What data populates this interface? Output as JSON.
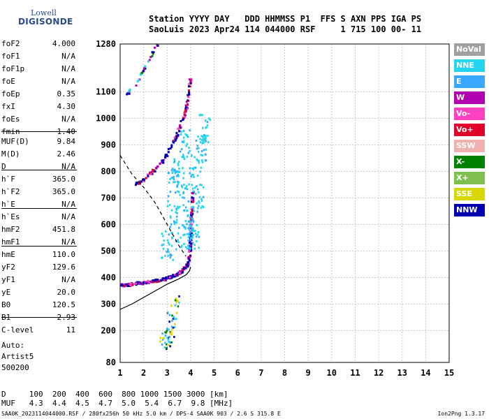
{
  "logo": {
    "line1": "Lowell",
    "line2": "DIGISONDE"
  },
  "header": {
    "line1": "Station YYYY DAY   DDD HHMMSS P1  FFS S AXN PPS IGA PS",
    "line2": "SaoLuis 2023 Apr24 114 044000 RSF     1 715 100 00- 11"
  },
  "params": [
    {
      "k": "foF2",
      "v": "4.000"
    },
    {
      "k": "foF1",
      "v": "N/A"
    },
    {
      "k": "foF1p",
      "v": "N/A"
    },
    {
      "k": "foE",
      "v": "N/A"
    },
    {
      "k": "foEp",
      "v": "0.35"
    },
    {
      "k": "fxI",
      "v": "4.30"
    },
    {
      "k": "foEs",
      "v": "N/A"
    },
    {
      "k": "fmin",
      "v": "1.40"
    },
    {
      "k": "MUF(D)",
      "v": "9.84"
    },
    {
      "k": "M(D)",
      "v": "2.46"
    },
    {
      "k": "D",
      "v": "N/A"
    },
    {
      "k": "h`F",
      "v": "365.0"
    },
    {
      "k": "h`F2",
      "v": "365.0"
    },
    {
      "k": "h`E",
      "v": "N/A"
    },
    {
      "k": "h`Es",
      "v": "N/A"
    },
    {
      "k": "hmF2",
      "v": "451.8"
    },
    {
      "k": "hmF1",
      "v": "N/A"
    },
    {
      "k": "hmE",
      "v": "110.0"
    },
    {
      "k": "yF2",
      "v": "129.6"
    },
    {
      "k": "yF1",
      "v": "N/A"
    },
    {
      "k": "yE",
      "v": "20.0"
    },
    {
      "k": "B0",
      "v": "120.5"
    },
    {
      "k": "B1",
      "v": "2.93"
    },
    {
      "k": "C-level",
      "v": "11"
    }
  ],
  "auto": {
    "l1": "Auto:",
    "l2": "Artist5",
    "l3": "500200"
  },
  "bottom": {
    "line1": "D     100  200  400  600  800 1000 1500 3000 [km]",
    "line2": "MUF   4.3  4.4  4.5  4.7  5.0  5.4  6.7  9.8 [MHz]"
  },
  "footer": "SAA0K_2023114044000.RSF / 280fx256h 50 kHz 5.0 km / DPS-4 SAA0K 903 / 2.6 S 315.8 E",
  "footer_right": "Ion2Png 1.3.17",
  "legend": [
    {
      "label": "NoVal",
      "color": "#a0a0a0"
    },
    {
      "label": "NNE",
      "color": "#24d4f0"
    },
    {
      "label": "E",
      "color": "#3aa8ff"
    },
    {
      "label": "W",
      "color": "#b000b0"
    },
    {
      "label": "Vo-",
      "color": "#ff40c0"
    },
    {
      "label": "Vo+",
      "color": "#e0002a"
    },
    {
      "label": "SSW",
      "color": "#f0b0b0"
    },
    {
      "label": "X-",
      "color": "#008000"
    },
    {
      "label": "X+",
      "color": "#80c050"
    },
    {
      "label": "SSE",
      "color": "#d8d800"
    },
    {
      "label": "NNW",
      "color": "#0000b0"
    }
  ],
  "chart_data": {
    "type": "scatter",
    "x_ticks": [
      1,
      2,
      3,
      4,
      5,
      6,
      7,
      8,
      9,
      10,
      11,
      12,
      13,
      14,
      15
    ],
    "y_ticks": [
      80,
      200,
      300,
      400,
      500,
      600,
      700,
      800,
      900,
      1000,
      1100,
      1280
    ],
    "xlim": [
      1,
      15
    ],
    "ylim": [
      80,
      1280
    ],
    "grid": true,
    "o_trace": [
      [
        1.05,
        370
      ],
      [
        1.3,
        372
      ],
      [
        1.6,
        376
      ],
      [
        2.0,
        380
      ],
      [
        2.4,
        386
      ],
      [
        2.8,
        392
      ],
      [
        3.1,
        400
      ],
      [
        3.4,
        410
      ],
      [
        3.7,
        428
      ],
      [
        3.9,
        455
      ],
      [
        4.0,
        510
      ],
      [
        4.02,
        560
      ],
      [
        4.05,
        640
      ],
      [
        4.1,
        720
      ]
    ],
    "o_trace_upper": [
      [
        1.7,
        750
      ],
      [
        2.0,
        770
      ],
      [
        2.4,
        800
      ],
      [
        2.8,
        835
      ],
      [
        3.1,
        880
      ],
      [
        3.4,
        930
      ],
      [
        3.6,
        980
      ],
      [
        3.8,
        1030
      ],
      [
        3.9,
        1080
      ],
      [
        4.0,
        1150
      ]
    ],
    "o_trace_top": [
      [
        1.3,
        1090
      ],
      [
        1.6,
        1120
      ],
      [
        2.0,
        1180
      ],
      [
        2.3,
        1230
      ],
      [
        2.6,
        1280
      ]
    ],
    "x_spread": [
      [
        3.0,
        520
      ],
      [
        3.2,
        640
      ],
      [
        3.3,
        760
      ],
      [
        3.5,
        820
      ],
      [
        3.7,
        700
      ],
      [
        3.9,
        600
      ],
      [
        4.1,
        560
      ],
      [
        4.3,
        700
      ],
      [
        4.4,
        880
      ],
      [
        4.6,
        960
      ],
      [
        3.6,
        560
      ],
      [
        3.8,
        900
      ],
      [
        4.2,
        820
      ]
    ],
    "low_echoes": [
      [
        3.0,
        170
      ],
      [
        3.1,
        220
      ],
      [
        3.2,
        260
      ],
      [
        3.3,
        310
      ],
      [
        2.9,
        150
      ],
      [
        3.1,
        190
      ]
    ],
    "profile_solid": [
      [
        1.0,
        280
      ],
      [
        1.5,
        300
      ],
      [
        2.0,
        325
      ],
      [
        2.5,
        350
      ],
      [
        3.0,
        375
      ],
      [
        3.5,
        395
      ],
      [
        3.8,
        410
      ],
      [
        3.95,
        425
      ],
      [
        4.0,
        440
      ]
    ],
    "profile_dashed": [
      [
        1.0,
        860
      ],
      [
        1.5,
        790
      ],
      [
        2.0,
        740
      ],
      [
        2.5,
        680
      ],
      [
        3.0,
        600
      ],
      [
        3.5,
        520
      ],
      [
        3.8,
        480
      ]
    ]
  }
}
